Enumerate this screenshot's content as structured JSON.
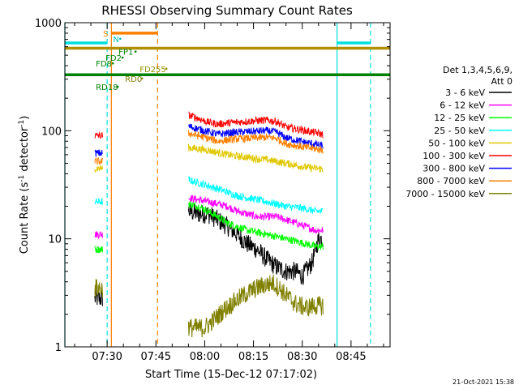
{
  "chart_data": {
    "type": "line",
    "title": "RHESSI Observing Summary Count Rates",
    "xlabel": "Start Time (15-Dec-12 07:17:02)",
    "ylabel_main": "Count Rate (s",
    "ylabel_sup1": "-1",
    "ylabel_mid": " detector",
    "ylabel_sup2": "-1",
    "ylabel_end": ")",
    "yscale": "log",
    "ylim": [
      1,
      1000
    ],
    "xlim_minutes": [
      437,
      537
    ],
    "y_ticks": [
      {
        "value": 1,
        "label": "1"
      },
      {
        "value": 10,
        "label": "10"
      },
      {
        "value": 100,
        "label": "100"
      },
      {
        "value": 1000,
        "label": "1000"
      }
    ],
    "x_ticks": [
      {
        "value": 450,
        "label": "07:30"
      },
      {
        "value": 465,
        "label": "07:45"
      },
      {
        "value": 480,
        "label": "08:00"
      },
      {
        "value": 495,
        "label": "08:15"
      },
      {
        "value": 510,
        "label": "08:30"
      },
      {
        "value": 525,
        "label": "08:45"
      }
    ],
    "legend_header": [
      "Det 1,3,4,5,6,9,",
      "Att 0"
    ],
    "legend_position": "right",
    "series": [
      {
        "name": "3 - 6 keV",
        "color": "#000000",
        "pre": 2.8,
        "points": [
          [
            475,
            18
          ],
          [
            478,
            17
          ],
          [
            481,
            17
          ],
          [
            484,
            15
          ],
          [
            487,
            13
          ],
          [
            490,
            11
          ],
          [
            493,
            9
          ],
          [
            496,
            8
          ],
          [
            499,
            6.5
          ],
          [
            502,
            5.5
          ],
          [
            505,
            5
          ],
          [
            508,
            5
          ],
          [
            510,
            4.5
          ],
          [
            513,
            6
          ],
          [
            515,
            10
          ],
          [
            516.5,
            10
          ]
        ]
      },
      {
        "name": "6 - 12 keV",
        "color": "#ff00ff",
        "pre": 11,
        "points": [
          [
            475,
            24
          ],
          [
            478,
            23
          ],
          [
            481,
            22
          ],
          [
            484,
            21
          ],
          [
            487,
            20
          ],
          [
            490,
            18
          ],
          [
            493,
            17
          ],
          [
            496,
            16
          ],
          [
            499,
            16
          ],
          [
            502,
            16
          ],
          [
            505,
            15
          ],
          [
            508,
            14
          ],
          [
            511,
            13
          ],
          [
            514,
            12
          ],
          [
            516.5,
            12
          ]
        ]
      },
      {
        "name": "12 - 25 keV",
        "color": "#00ff00",
        "pre": 8,
        "points": [
          [
            475,
            21
          ],
          [
            478,
            20
          ],
          [
            481,
            18
          ],
          [
            484,
            16
          ],
          [
            487,
            14
          ],
          [
            490,
            13
          ],
          [
            493,
            12
          ],
          [
            496,
            11.5
          ],
          [
            499,
            11
          ],
          [
            502,
            10.5
          ],
          [
            505,
            10
          ],
          [
            508,
            9.5
          ],
          [
            511,
            9
          ],
          [
            514,
            8.5
          ],
          [
            516.5,
            8.5
          ]
        ]
      },
      {
        "name": "25 - 50 keV",
        "color": "#00ffff",
        "pre": 22,
        "points": [
          [
            475,
            35
          ],
          [
            478,
            33
          ],
          [
            481,
            31
          ],
          [
            484,
            29
          ],
          [
            487,
            27
          ],
          [
            490,
            25
          ],
          [
            493,
            24
          ],
          [
            496,
            23
          ],
          [
            499,
            22
          ],
          [
            502,
            21
          ],
          [
            505,
            20
          ],
          [
            508,
            19.5
          ],
          [
            511,
            19
          ],
          [
            514,
            18
          ],
          [
            516.5,
            18
          ]
        ]
      },
      {
        "name": "50 - 100 keV",
        "color": "#e0c800",
        "pre": 45,
        "points": [
          [
            475,
            70
          ],
          [
            478,
            68
          ],
          [
            481,
            66
          ],
          [
            484,
            63
          ],
          [
            487,
            60
          ],
          [
            490,
            58
          ],
          [
            493,
            57
          ],
          [
            496,
            55
          ],
          [
            499,
            54
          ],
          [
            502,
            52
          ],
          [
            505,
            50
          ],
          [
            508,
            48
          ],
          [
            511,
            46
          ],
          [
            514,
            45
          ],
          [
            516.5,
            44
          ]
        ]
      },
      {
        "name": "100 - 300 keV",
        "color": "#ff0000",
        "pre": 90,
        "points": [
          [
            475,
            140
          ],
          [
            478,
            130
          ],
          [
            481,
            120
          ],
          [
            484,
            115
          ],
          [
            487,
            118
          ],
          [
            490,
            120
          ],
          [
            493,
            122
          ],
          [
            496,
            124
          ],
          [
            499,
            125
          ],
          [
            502,
            122
          ],
          [
            505,
            108
          ],
          [
            508,
            104
          ],
          [
            511,
            100
          ],
          [
            514,
            96
          ],
          [
            516.5,
            92
          ]
        ]
      },
      {
        "name": "300 - 800 keV",
        "color": "#0000ff",
        "pre": 62,
        "points": [
          [
            475,
            110
          ],
          [
            478,
            104
          ],
          [
            481,
            98
          ],
          [
            484,
            93
          ],
          [
            487,
            95
          ],
          [
            490,
            97
          ],
          [
            493,
            98
          ],
          [
            496,
            99
          ],
          [
            499,
            100
          ],
          [
            502,
            97
          ],
          [
            505,
            86
          ],
          [
            508,
            82
          ],
          [
            511,
            78
          ],
          [
            514,
            75
          ],
          [
            516.5,
            72
          ]
        ]
      },
      {
        "name": "800 - 7000 keV",
        "color": "#ff8000",
        "pre": 52,
        "points": [
          [
            475,
            95
          ],
          [
            478,
            90
          ],
          [
            481,
            85
          ],
          [
            484,
            80
          ],
          [
            487,
            82
          ],
          [
            490,
            84
          ],
          [
            493,
            85
          ],
          [
            496,
            86
          ],
          [
            499,
            87
          ],
          [
            502,
            85
          ],
          [
            505,
            76
          ],
          [
            508,
            73
          ],
          [
            511,
            70
          ],
          [
            514,
            68
          ],
          [
            516.5,
            66
          ]
        ]
      },
      {
        "name": "7000 - 15000 keV",
        "color": "#808000",
        "pre": 3.5,
        "points": [
          [
            475,
            1.5
          ],
          [
            480,
            1.5
          ],
          [
            483,
            1.8
          ],
          [
            486,
            2.2
          ],
          [
            489,
            2.6
          ],
          [
            492,
            3.0
          ],
          [
            495,
            3.4
          ],
          [
            498,
            3.7
          ],
          [
            501,
            3.9
          ],
          [
            503,
            3.5
          ],
          [
            505,
            3.0
          ],
          [
            508,
            2.5
          ],
          [
            511,
            2.3
          ],
          [
            514,
            2.4
          ],
          [
            516.5,
            2.4
          ]
        ]
      }
    ],
    "flag_bars": [
      {
        "label": "S",
        "color": "#ff8000",
        "x0": 451.3,
        "x1": 465.5,
        "y": 800
      },
      {
        "label": "",
        "color": "#b09000",
        "x0": 437,
        "x1": 537,
        "y": 580
      },
      {
        "label": "",
        "color": "#008000",
        "x0": 437,
        "x1": 537,
        "y": 330
      },
      {
        "label": "",
        "color": "#00e0e0",
        "x0": 437,
        "x1": 450,
        "y": 650
      },
      {
        "label": "",
        "color": "#00e0e0",
        "x0": 520.7,
        "x1": 531,
        "y": 650
      }
    ],
    "flag_labels": [
      {
        "text": "N",
        "color": "#00c0c0",
        "x": 451.8,
        "y": 710
      },
      {
        "text": "FP1",
        "color": "#008000",
        "x": 453.5,
        "y": 540
      },
      {
        "text": "FD2",
        "color": "#008000",
        "x": 449.5,
        "y": 475
      },
      {
        "text": "FD8",
        "color": "#008000",
        "x": 446.5,
        "y": 420
      },
      {
        "text": "FD255",
        "color": "#909000",
        "x": 460,
        "y": 375
      },
      {
        "text": "RD0",
        "color": "#808000",
        "x": 455.5,
        "y": 305
      },
      {
        "text": "RD18",
        "color": "#008000",
        "x": 446.5,
        "y": 255
      }
    ],
    "vlines": [
      {
        "x": 437,
        "color": "#00e0e0",
        "dashed": false
      },
      {
        "x": 450,
        "color": "#00e0e0",
        "dashed": true
      },
      {
        "x": 451.3,
        "color": "#ff8000",
        "dashed": false
      },
      {
        "x": 465.5,
        "color": "#ff8000",
        "dashed": true
      },
      {
        "x": 520.7,
        "color": "#00e0e0",
        "dashed": false
      },
      {
        "x": 531,
        "color": "#00e0e0",
        "dashed": true
      }
    ],
    "gaps": [
      [
        448.7,
        475
      ],
      [
        516.5,
        537
      ]
    ],
    "pre_window": [
      446.2,
      448.7
    ]
  },
  "footer_timestamp": "21-Oct-2021 15:38"
}
